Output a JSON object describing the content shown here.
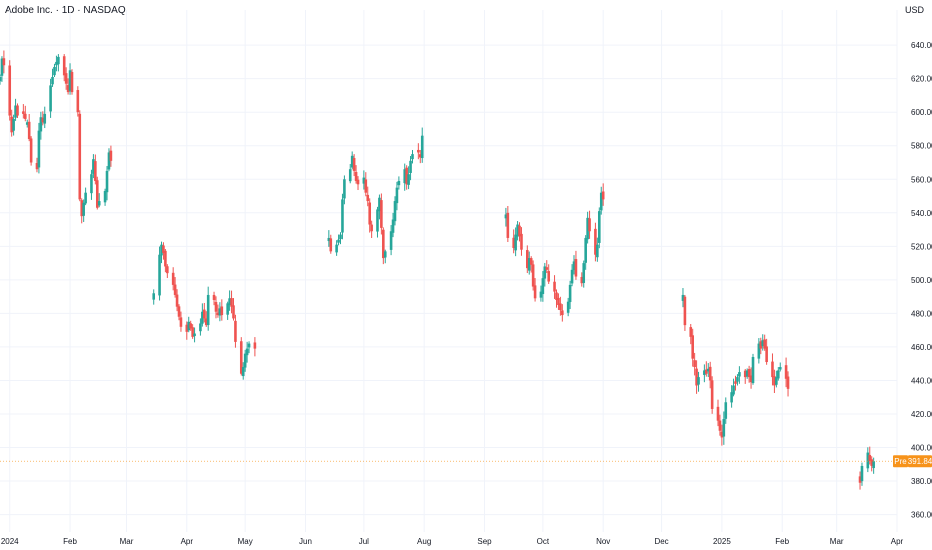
{
  "header": {
    "title": "Adobe Inc. · 1D · NASDAQ",
    "currency": "USD"
  },
  "colors": {
    "up": "#26a69a",
    "down": "#ef5350",
    "badge": "#f7931a",
    "grid": "#f0f3fa"
  },
  "price_badge": {
    "label": "Pre",
    "value": "391.84",
    "price": 391.84
  },
  "chart_data": {
    "type": "candlestick",
    "title": "Adobe Inc. · 1D · NASDAQ",
    "ylim": [
      352,
      655
    ],
    "y_ticks": [
      360,
      380,
      400,
      420,
      440,
      460,
      480,
      500,
      520,
      540,
      560,
      580,
      600,
      620,
      640
    ],
    "y_tick_labels": [
      "360.00",
      "380.00",
      "400.00",
      "420.00",
      "440.00",
      "460.00",
      "480.00",
      "500.00",
      "520.00",
      "540.00",
      "560.00",
      "580.00",
      "600.00",
      "620.00",
      "640.00"
    ],
    "x_range": [
      "2023-12-27",
      "2025-04-01"
    ],
    "x_ticks": [
      {
        "date": "2024-01-01",
        "label": "2024"
      },
      {
        "date": "2024-02-01",
        "label": "Feb"
      },
      {
        "date": "2024-03-01",
        "label": "Mar"
      },
      {
        "date": "2024-04-01",
        "label": "Apr"
      },
      {
        "date": "2024-05-01",
        "label": "May"
      },
      {
        "date": "2024-06-01",
        "label": "Jun"
      },
      {
        "date": "2024-07-01",
        "label": "Jul"
      },
      {
        "date": "2024-08-01",
        "label": "Aug"
      },
      {
        "date": "2024-09-01",
        "label": "Sep"
      },
      {
        "date": "2024-10-01",
        "label": "Oct"
      },
      {
        "date": "2024-11-01",
        "label": "Nov"
      },
      {
        "date": "2024-12-01",
        "label": "Dec"
      },
      {
        "date": "2025-01-01",
        "label": "2025"
      },
      {
        "date": "2025-02-01",
        "label": "Feb"
      },
      {
        "date": "2025-03-01",
        "label": "Mar"
      },
      {
        "date": "2025-04-01",
        "label": "Apr"
      }
    ],
    "segments": [
      {
        "start": "2023-12-27",
        "closes": [
          621,
          632,
          628,
          598,
          588,
          596,
          604,
          598,
          599,
          596,
          594,
          584,
          570,
          566,
          589,
          597,
          594,
          599,
          616,
          621,
          627,
          630,
          633,
          622,
          617,
          612,
          625,
          612,
          600,
          548,
          538,
          546,
          552,
          563,
          572,
          559,
          543,
          547,
          553,
          565,
          576,
          571
        ]
      },
      {
        "start": "2024-03-15",
        "closes": [
          492,
          515,
          521,
          516,
          508,
          504,
          497,
          491,
          484,
          478,
          472,
          469,
          475,
          471,
          466,
          468,
          474,
          481,
          477,
          473,
          491,
          488,
          481,
          479,
          483,
          479,
          486,
          489,
          484,
          477,
          463,
          444,
          448,
          456,
          459,
          462,
          459
        ]
      },
      {
        "start": "2024-06-13",
        "closes": [
          525,
          517,
          521,
          524,
          527,
          548,
          560,
          566,
          574,
          565,
          559,
          557,
          561,
          552,
          547,
          533,
          529,
          542,
          549,
          531,
          513,
          517,
          529,
          536,
          547,
          555,
          559,
          566,
          557,
          563,
          571,
          575,
          576,
          573,
          586
        ]
      },
      {
        "start": "2024-09-12",
        "closes": [
          539,
          525,
          519,
          527,
          533,
          526,
          518,
          507,
          513,
          509,
          496,
          489,
          493,
          501,
          508,
          506,
          499,
          493,
          488,
          485,
          482,
          479,
          487,
          497,
          506,
          511,
          502,
          498,
          510,
          525,
          537,
          529,
          515,
          521,
          541,
          552,
          548
        ]
      },
      {
        "start": "2024-12-12",
        "closes": [
          491,
          473,
          466,
          453,
          448,
          437,
          442,
          446,
          444,
          447,
          440,
          423,
          416,
          410,
          406,
          417,
          427,
          433,
          437,
          438,
          442,
          445,
          442,
          446,
          442,
          439,
          454,
          462,
          459,
          464,
          459,
          451,
          442,
          437,
          442,
          446,
          448,
          441,
          435
        ]
      },
      {
        "start": "2025-03-13",
        "closes": [
          379,
          389,
          397,
          392,
          389,
          391.84
        ]
      }
    ]
  }
}
